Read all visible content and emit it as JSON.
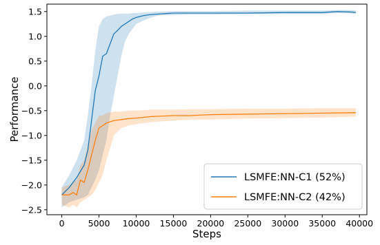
{
  "chart_data": {
    "type": "line",
    "title": "",
    "xlabel": "Steps",
    "ylabel": "Performance",
    "xlim": [
      -2000,
      41000
    ],
    "ylim": [
      -2.6,
      1.65
    ],
    "xticks": [
      0,
      5000,
      10000,
      15000,
      20000,
      25000,
      30000,
      35000,
      40000
    ],
    "xtick_labels": [
      "0",
      "5000",
      "10000",
      "15000",
      "20000",
      "25000",
      "30000",
      "35000",
      "40000"
    ],
    "yticks": [
      1.5,
      1.0,
      0.5,
      0.0,
      -0.5,
      -1.0,
      -1.5,
      -2.0,
      -2.5
    ],
    "ytick_labels": [
      "1.5",
      "1.0",
      "0.5",
      "0.0",
      "−0.5",
      "−1.0",
      "−1.5",
      "−2.0",
      "−2.5"
    ],
    "grid": false,
    "legend_position": "lower-right",
    "series": [
      {
        "name": "LSMFE:NN-C1 (52%)",
        "color": "#1f77b4",
        "x": [
          0,
          1000,
          2000,
          3000,
          3500,
          4000,
          4500,
          5000,
          5500,
          6000,
          6500,
          7000,
          7500,
          8000,
          8500,
          9000,
          9500,
          10000,
          11000,
          12000,
          13000,
          14000,
          15000,
          17000,
          20000,
          25000,
          30000,
          35000,
          37000,
          39000,
          39500
        ],
        "y": [
          -2.2,
          -2.05,
          -1.85,
          -1.6,
          -1.3,
          -0.7,
          -0.1,
          0.2,
          0.6,
          0.65,
          0.85,
          1.05,
          1.12,
          1.2,
          1.25,
          1.3,
          1.35,
          1.38,
          1.42,
          1.44,
          1.45,
          1.46,
          1.47,
          1.47,
          1.47,
          1.47,
          1.48,
          1.48,
          1.5,
          1.49,
          1.48
        ],
        "upper": [
          -2.05,
          -1.8,
          -1.5,
          -1.1,
          -0.6,
          0.0,
          0.7,
          1.2,
          1.35,
          1.4,
          1.42,
          1.44,
          1.45,
          1.46,
          1.46,
          1.46,
          1.47,
          1.47,
          1.48,
          1.49,
          1.5,
          1.5,
          1.51,
          1.51,
          1.51,
          1.52,
          1.52,
          1.52,
          1.53,
          1.53,
          1.52
        ],
        "lower": [
          -2.45,
          -2.35,
          -2.3,
          -2.25,
          -2.2,
          -2.05,
          -1.9,
          -1.7,
          -1.4,
          -1.1,
          -0.6,
          -0.2,
          0.2,
          0.6,
          0.9,
          1.05,
          1.15,
          1.25,
          1.32,
          1.38,
          1.42,
          1.43,
          1.43,
          1.44,
          1.44,
          1.45,
          1.45,
          1.45,
          1.47,
          1.46,
          1.45
        ]
      },
      {
        "name": "LSMFE:NN-C2 (42%)",
        "color": "#ff7f0e",
        "x": [
          0,
          1000,
          1500,
          2000,
          2500,
          3000,
          3500,
          4000,
          4500,
          5000,
          5500,
          6000,
          7000,
          8000,
          9000,
          10000,
          12000,
          15000,
          17000,
          20000,
          25000,
          30000,
          35000,
          39500
        ],
        "y": [
          -2.2,
          -2.2,
          -2.15,
          -2.2,
          -1.9,
          -1.95,
          -1.7,
          -1.4,
          -1.1,
          -0.85,
          -0.8,
          -0.75,
          -0.7,
          -0.68,
          -0.66,
          -0.65,
          -0.62,
          -0.6,
          -0.6,
          -0.58,
          -0.57,
          -0.56,
          -0.55,
          -0.54
        ],
        "upper": [
          -2.05,
          -2.0,
          -1.95,
          -1.9,
          -1.6,
          -1.5,
          -1.2,
          -0.9,
          -0.75,
          -0.6,
          -0.6,
          -0.55,
          -0.52,
          -0.52,
          -0.5,
          -0.5,
          -0.48,
          -0.48,
          -0.47,
          -0.47,
          -0.46,
          -0.46,
          -0.45,
          -0.45
        ],
        "lower": [
          -2.4,
          -2.45,
          -2.4,
          -2.45,
          -2.35,
          -2.3,
          -2.25,
          -2.2,
          -2.1,
          -1.95,
          -1.8,
          -1.5,
          -1.0,
          -0.85,
          -0.8,
          -0.77,
          -0.73,
          -0.7,
          -0.68,
          -0.68,
          -0.66,
          -0.65,
          -0.64,
          -0.62
        ]
      }
    ]
  }
}
